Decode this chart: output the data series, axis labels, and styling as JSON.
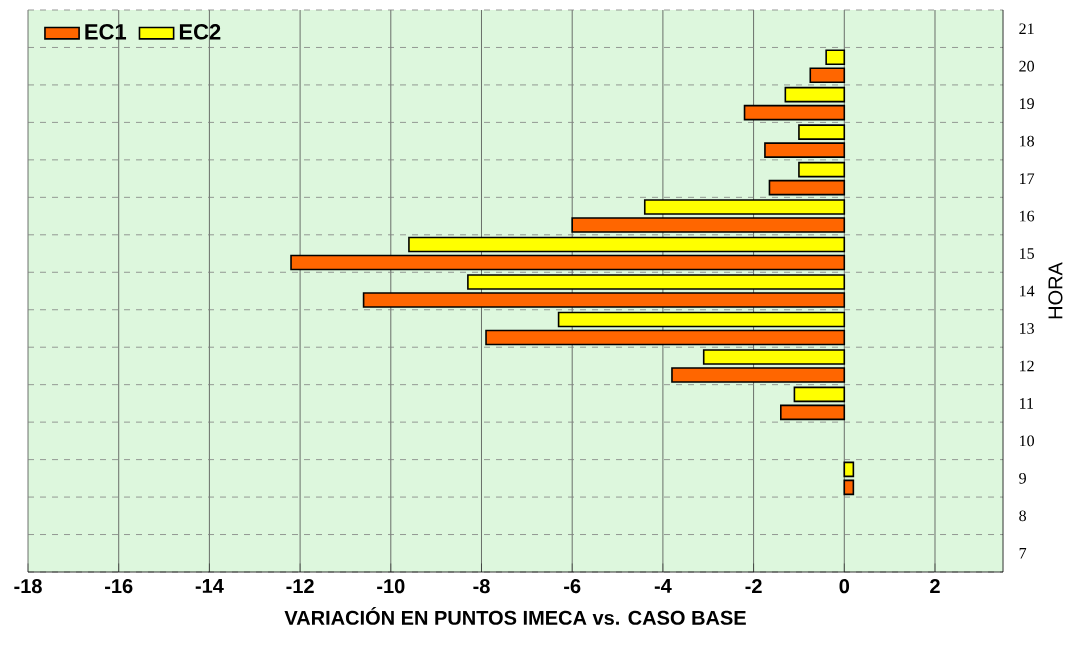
{
  "chart_data": {
    "type": "bar",
    "orientation": "horizontal",
    "xlabel": "VARIACIÓN EN PUNTOS IMECA vs. CASO BASE",
    "ylabel": "HORA",
    "categories": [
      "21",
      "20",
      "19",
      "18",
      "17",
      "16",
      "15",
      "14",
      "13",
      "12",
      "11",
      "10",
      "9",
      "8",
      "7"
    ],
    "series": [
      {
        "name": "EC1",
        "color": "#ff6600",
        "values": [
          null,
          -0.75,
          -2.2,
          -1.75,
          -1.65,
          -6.0,
          -12.2,
          -10.6,
          -7.9,
          -3.8,
          -1.4,
          null,
          0.2,
          null,
          null
        ]
      },
      {
        "name": "EC2",
        "color": "#ffff00",
        "values": [
          null,
          -0.4,
          -1.3,
          -1.0,
          -1.0,
          -4.4,
          -9.6,
          -8.3,
          -6.3,
          -3.1,
          -1.1,
          null,
          0.2,
          null,
          null
        ]
      }
    ],
    "xlim": [
      -18,
      3.5
    ],
    "xticks": [
      -18,
      -16,
      -14,
      -12,
      -10,
      -8,
      -6,
      -4,
      -2,
      0,
      2
    ],
    "grid": true,
    "legend": "top left"
  }
}
